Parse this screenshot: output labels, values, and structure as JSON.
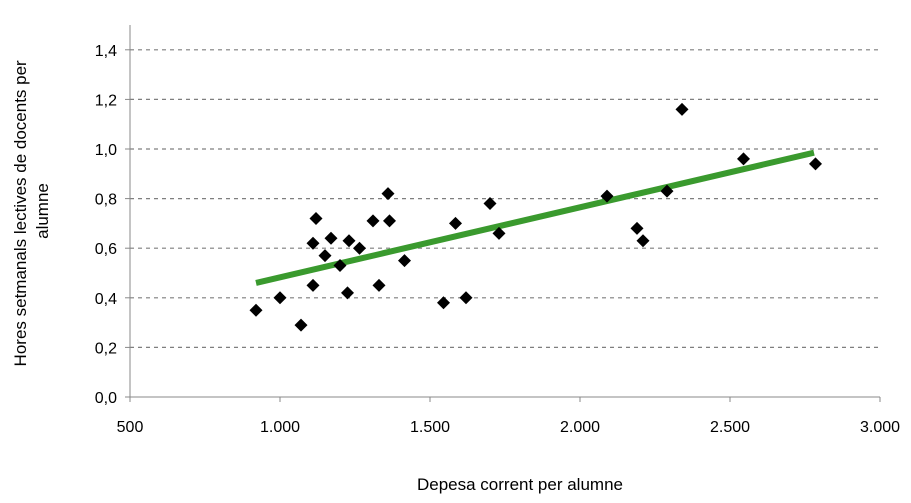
{
  "chart_data": {
    "type": "scatter",
    "title": "",
    "xlabel": "Depesa corrent per alumne",
    "ylabel_lines": [
      "Hores setmanals lectives de docents per",
      "alumne"
    ],
    "xlim": [
      500,
      3000
    ],
    "ylim": [
      0,
      1.5
    ],
    "x_ticks": [
      500,
      1000,
      1500,
      2000,
      2500,
      3000
    ],
    "x_tick_labels": [
      "500",
      "1.000",
      "1.500",
      "2.000",
      "2.500",
      "3.000"
    ],
    "y_ticks": [
      0,
      0.2,
      0.4,
      0.6,
      0.8,
      1.0,
      1.2,
      1.4
    ],
    "y_tick_labels": [
      "0,0",
      "0,2",
      "0,4",
      "0,6",
      "0,8",
      "1,0",
      "1,2",
      "1,4"
    ],
    "grid": "horizontal dashed",
    "legend": "none",
    "marker_color": "#000000",
    "trendline_color": "#3a9a2e",
    "trendline": {
      "x": [
        920,
        2780
      ],
      "y": [
        0.46,
        0.985
      ]
    },
    "points": [
      {
        "x": 920,
        "y": 0.35
      },
      {
        "x": 1000,
        "y": 0.4
      },
      {
        "x": 1070,
        "y": 0.29
      },
      {
        "x": 1110,
        "y": 0.45
      },
      {
        "x": 1110,
        "y": 0.62
      },
      {
        "x": 1120,
        "y": 0.72
      },
      {
        "x": 1150,
        "y": 0.57
      },
      {
        "x": 1170,
        "y": 0.64
      },
      {
        "x": 1200,
        "y": 0.53
      },
      {
        "x": 1225,
        "y": 0.42
      },
      {
        "x": 1230,
        "y": 0.63
      },
      {
        "x": 1265,
        "y": 0.6
      },
      {
        "x": 1310,
        "y": 0.71
      },
      {
        "x": 1330,
        "y": 0.45
      },
      {
        "x": 1360,
        "y": 0.82
      },
      {
        "x": 1365,
        "y": 0.71
      },
      {
        "x": 1415,
        "y": 0.55
      },
      {
        "x": 1545,
        "y": 0.38
      },
      {
        "x": 1585,
        "y": 0.7
      },
      {
        "x": 1620,
        "y": 0.4
      },
      {
        "x": 1700,
        "y": 0.78
      },
      {
        "x": 1730,
        "y": 0.66
      },
      {
        "x": 2090,
        "y": 0.81
      },
      {
        "x": 2190,
        "y": 0.68
      },
      {
        "x": 2210,
        "y": 0.63
      },
      {
        "x": 2290,
        "y": 0.83
      },
      {
        "x": 2340,
        "y": 1.16
      },
      {
        "x": 2545,
        "y": 0.96
      },
      {
        "x": 2785,
        "y": 0.94
      }
    ]
  }
}
